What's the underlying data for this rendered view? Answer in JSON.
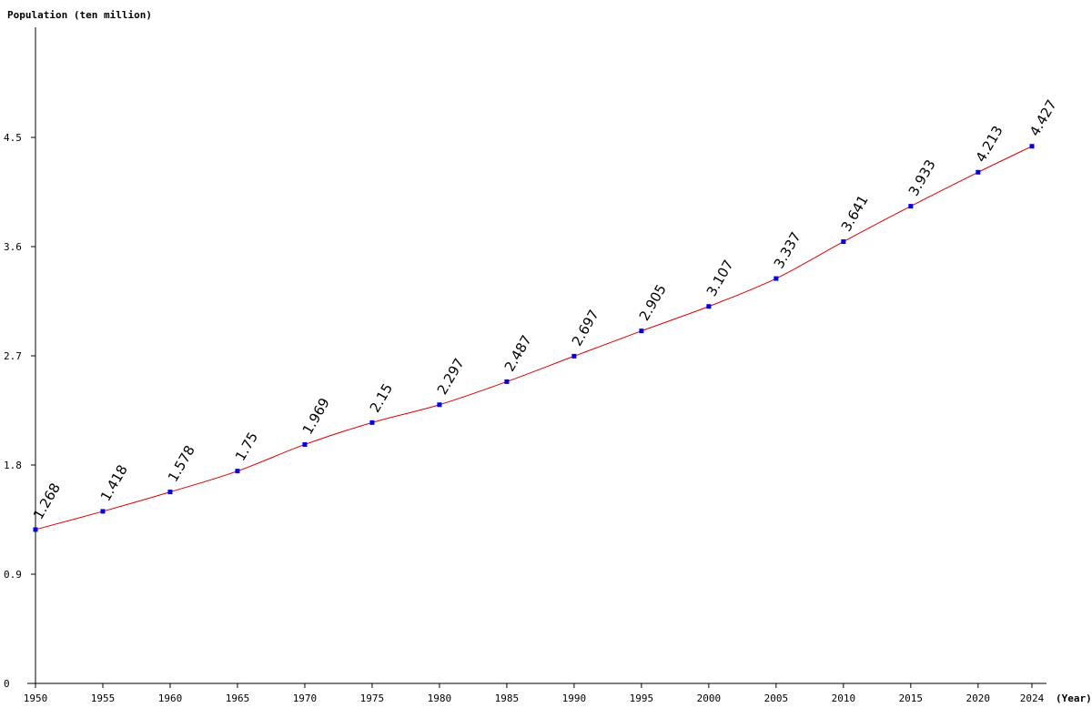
{
  "chart_data": {
    "type": "line",
    "ylabel": "Population (ten million)",
    "xlabel": "(Year)",
    "x": [
      1950,
      1955,
      1960,
      1965,
      1970,
      1975,
      1980,
      1985,
      1990,
      1995,
      2000,
      2005,
      2010,
      2015,
      2020,
      2024
    ],
    "x_tick_labels": [
      "1950",
      "1955",
      "1960",
      "1965",
      "1970",
      "1975",
      "1980",
      "1985",
      "1990",
      "1995",
      "2000",
      "2005",
      "2010",
      "2015",
      "2020",
      "2024"
    ],
    "series": [
      {
        "values": [
          1.268,
          1.418,
          1.578,
          1.75,
          1.969,
          2.15,
          2.297,
          2.487,
          2.697,
          2.905,
          3.107,
          3.337,
          3.641,
          3.933,
          4.213,
          4.427
        ],
        "data_labels": [
          "1.268",
          "1.418",
          "1.578",
          "1.75",
          "1.969",
          "2.15",
          "2.297",
          "2.487",
          "2.697",
          "2.905",
          "3.107",
          "3.337",
          "3.641",
          "3.933",
          "4.213",
          "4.427"
        ],
        "line_color": "#dd0000",
        "marker_color": "#0000ee"
      }
    ],
    "y_ticks": [
      0,
      0.9,
      1.8,
      2.7,
      3.6,
      4.5
    ],
    "y_tick_labels": [
      "0",
      "0.9",
      "1.8",
      "2.7",
      "3.6",
      "4.5"
    ],
    "ylim": [
      0,
      5.4
    ],
    "xlim": [
      1950,
      2024
    ],
    "grid": false,
    "legend": "none"
  }
}
